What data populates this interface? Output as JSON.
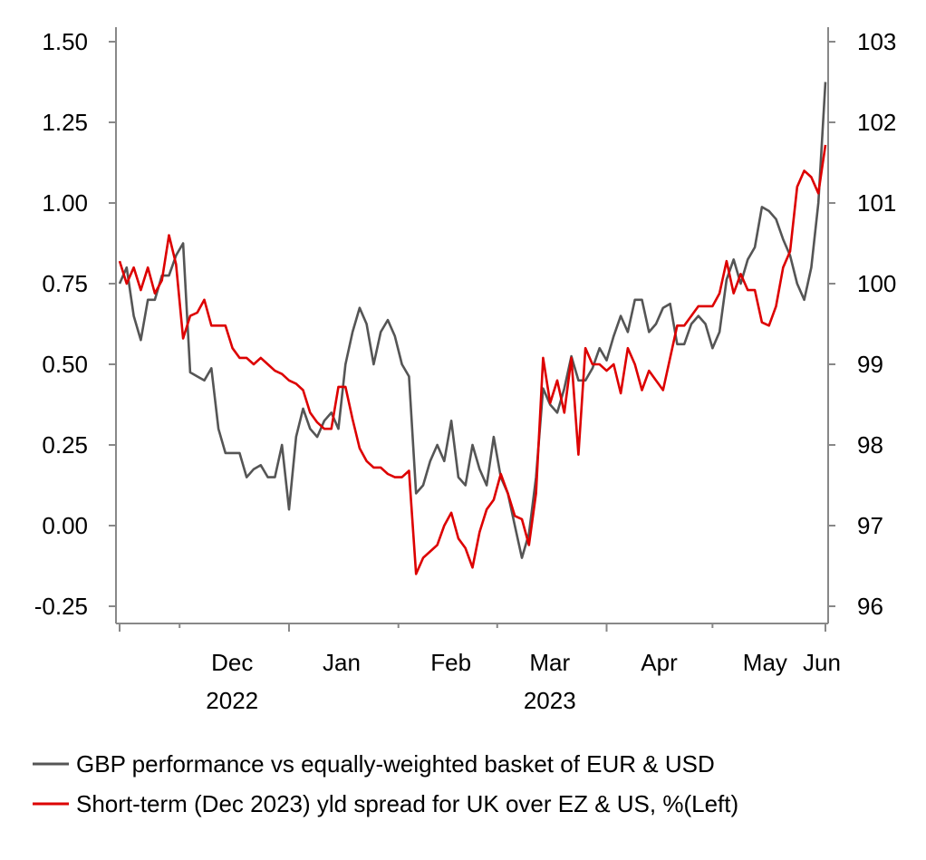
{
  "chart_data": {
    "type": "line",
    "title": "",
    "grid": false,
    "legend_position": "bottom",
    "y_left": {
      "ticks": [
        "1.50",
        "1.25",
        "1.00",
        "0.75",
        "0.50",
        "0.25",
        "0.00",
        "-0.25"
      ],
      "range": [
        -0.3,
        1.5
      ]
    },
    "y_right": {
      "ticks": [
        "103",
        "102",
        "101",
        "100",
        "99",
        "98",
        "97",
        "96"
      ],
      "range": [
        95.8,
        103
      ]
    },
    "x_range": [
      "2022-11-14",
      "2023-06-02"
    ],
    "x_months": [
      {
        "label": "Dec",
        "date": "2022-12-01"
      },
      {
        "label": "Jan",
        "date": "2023-01-01"
      },
      {
        "label": "Feb",
        "date": "2023-02-01"
      },
      {
        "label": "Mar",
        "date": "2023-03-01"
      },
      {
        "label": "Apr",
        "date": "2023-04-01"
      },
      {
        "label": "May",
        "date": "2023-05-01"
      },
      {
        "label": "Jun",
        "date": "2023-06-01"
      }
    ],
    "x_years": [
      {
        "label": "2022",
        "date": "2022-12-01"
      },
      {
        "label": "2023",
        "date": "2023-03-01"
      }
    ],
    "series": [
      {
        "name": "GBP performance vs equally-weighted basket of EUR & USD",
        "color": "#555555",
        "axis": "right",
        "points": [
          [
            "2022-11-14",
            100.0
          ],
          [
            "2022-11-16",
            100.2
          ],
          [
            "2022-11-18",
            99.6
          ],
          [
            "2022-11-20",
            99.3
          ],
          [
            "2022-11-22",
            99.8
          ],
          [
            "2022-11-24",
            99.8
          ],
          [
            "2022-11-26",
            100.1
          ],
          [
            "2022-11-28",
            100.1
          ],
          [
            "2022-11-30",
            100.35
          ],
          [
            "2022-12-02",
            100.5
          ],
          [
            "2022-12-04",
            98.9
          ],
          [
            "2022-12-06",
            98.85
          ],
          [
            "2022-12-08",
            98.8
          ],
          [
            "2022-12-10",
            98.95
          ],
          [
            "2022-12-12",
            98.2
          ],
          [
            "2022-12-14",
            97.9
          ],
          [
            "2022-12-16",
            97.9
          ],
          [
            "2022-12-18",
            97.9
          ],
          [
            "2022-12-20",
            97.6
          ],
          [
            "2022-12-22",
            97.7
          ],
          [
            "2022-12-24",
            97.75
          ],
          [
            "2022-12-26",
            97.6
          ],
          [
            "2022-12-28",
            97.6
          ],
          [
            "2022-12-30",
            98.0
          ],
          [
            "2023-01-01",
            97.2
          ],
          [
            "2023-01-03",
            98.1
          ],
          [
            "2023-01-05",
            98.45
          ],
          [
            "2023-01-07",
            98.2
          ],
          [
            "2023-01-09",
            98.1
          ],
          [
            "2023-01-11",
            98.3
          ],
          [
            "2023-01-13",
            98.4
          ],
          [
            "2023-01-15",
            98.2
          ],
          [
            "2023-01-17",
            99.0
          ],
          [
            "2023-01-19",
            99.4
          ],
          [
            "2023-01-21",
            99.7
          ],
          [
            "2023-01-23",
            99.5
          ],
          [
            "2023-01-25",
            99.0
          ],
          [
            "2023-01-27",
            99.4
          ],
          [
            "2023-01-29",
            99.55
          ],
          [
            "2023-01-31",
            99.35
          ],
          [
            "2023-02-02",
            99.0
          ],
          [
            "2023-02-04",
            98.85
          ],
          [
            "2023-02-06",
            97.4
          ],
          [
            "2023-02-08",
            97.5
          ],
          [
            "2023-02-10",
            97.8
          ],
          [
            "2023-02-12",
            98.0
          ],
          [
            "2023-02-14",
            97.8
          ],
          [
            "2023-02-16",
            98.3
          ],
          [
            "2023-02-18",
            97.6
          ],
          [
            "2023-02-20",
            97.5
          ],
          [
            "2023-02-22",
            98.0
          ],
          [
            "2023-02-24",
            97.7
          ],
          [
            "2023-02-26",
            97.5
          ],
          [
            "2023-02-28",
            98.1
          ],
          [
            "2023-03-02",
            97.6
          ],
          [
            "2023-03-04",
            97.4
          ],
          [
            "2023-03-06",
            97.0
          ],
          [
            "2023-03-08",
            96.6
          ],
          [
            "2023-03-10",
            96.9
          ],
          [
            "2023-03-12",
            97.6
          ],
          [
            "2023-03-14",
            98.7
          ],
          [
            "2023-03-16",
            98.5
          ],
          [
            "2023-03-18",
            98.4
          ],
          [
            "2023-03-20",
            98.7
          ],
          [
            "2023-03-22",
            99.1
          ],
          [
            "2023-03-24",
            98.8
          ],
          [
            "2023-03-26",
            98.8
          ],
          [
            "2023-03-28",
            98.95
          ],
          [
            "2023-03-30",
            99.2
          ],
          [
            "2023-04-01",
            99.05
          ],
          [
            "2023-04-03",
            99.35
          ],
          [
            "2023-04-05",
            99.6
          ],
          [
            "2023-04-07",
            99.4
          ],
          [
            "2023-04-09",
            99.8
          ],
          [
            "2023-04-11",
            99.8
          ],
          [
            "2023-04-13",
            99.4
          ],
          [
            "2023-04-15",
            99.5
          ],
          [
            "2023-04-17",
            99.7
          ],
          [
            "2023-04-19",
            99.75
          ],
          [
            "2023-04-21",
            99.25
          ],
          [
            "2023-04-23",
            99.25
          ],
          [
            "2023-04-25",
            99.5
          ],
          [
            "2023-04-27",
            99.6
          ],
          [
            "2023-04-29",
            99.5
          ],
          [
            "2023-05-01",
            99.2
          ],
          [
            "2023-05-03",
            99.4
          ],
          [
            "2023-05-05",
            100.05
          ],
          [
            "2023-05-07",
            100.3
          ],
          [
            "2023-05-09",
            100.0
          ],
          [
            "2023-05-11",
            100.3
          ],
          [
            "2023-05-13",
            100.45
          ],
          [
            "2023-05-15",
            100.95
          ],
          [
            "2023-05-17",
            100.9
          ],
          [
            "2023-05-19",
            100.8
          ],
          [
            "2023-05-21",
            100.55
          ],
          [
            "2023-05-23",
            100.35
          ],
          [
            "2023-05-25",
            100.0
          ],
          [
            "2023-05-27",
            99.8
          ],
          [
            "2023-05-29",
            100.2
          ],
          [
            "2023-05-31",
            101.0
          ],
          [
            "2023-06-02",
            102.5
          ]
        ]
      },
      {
        "name": "Short-term (Dec 2023) yld spread for UK over EZ & US, %(Left)",
        "color": "#dd0000",
        "axis": "left",
        "points": [
          [
            "2022-11-14",
            0.82
          ],
          [
            "2022-11-16",
            0.75
          ],
          [
            "2022-11-18",
            0.8
          ],
          [
            "2022-11-20",
            0.73
          ],
          [
            "2022-11-22",
            0.8
          ],
          [
            "2022-11-24",
            0.72
          ],
          [
            "2022-11-26",
            0.76
          ],
          [
            "2022-11-28",
            0.9
          ],
          [
            "2022-11-30",
            0.81
          ],
          [
            "2022-12-02",
            0.58
          ],
          [
            "2022-12-04",
            0.65
          ],
          [
            "2022-12-06",
            0.66
          ],
          [
            "2022-12-08",
            0.7
          ],
          [
            "2022-12-10",
            0.62
          ],
          [
            "2022-12-12",
            0.62
          ],
          [
            "2022-12-14",
            0.62
          ],
          [
            "2022-12-16",
            0.55
          ],
          [
            "2022-12-18",
            0.52
          ],
          [
            "2022-12-20",
            0.52
          ],
          [
            "2022-12-22",
            0.5
          ],
          [
            "2022-12-24",
            0.52
          ],
          [
            "2022-12-26",
            0.5
          ],
          [
            "2022-12-28",
            0.48
          ],
          [
            "2022-12-30",
            0.47
          ],
          [
            "2023-01-01",
            0.45
          ],
          [
            "2023-01-03",
            0.44
          ],
          [
            "2023-01-05",
            0.42
          ],
          [
            "2023-01-07",
            0.35
          ],
          [
            "2023-01-09",
            0.32
          ],
          [
            "2023-01-11",
            0.3
          ],
          [
            "2023-01-13",
            0.3
          ],
          [
            "2023-01-15",
            0.43
          ],
          [
            "2023-01-17",
            0.43
          ],
          [
            "2023-01-19",
            0.33
          ],
          [
            "2023-01-21",
            0.24
          ],
          [
            "2023-01-23",
            0.2
          ],
          [
            "2023-01-25",
            0.18
          ],
          [
            "2023-01-27",
            0.18
          ],
          [
            "2023-01-29",
            0.16
          ],
          [
            "2023-01-31",
            0.15
          ],
          [
            "2023-02-02",
            0.15
          ],
          [
            "2023-02-04",
            0.17
          ],
          [
            "2023-02-06",
            -0.15
          ],
          [
            "2023-02-08",
            -0.1
          ],
          [
            "2023-02-10",
            -0.08
          ],
          [
            "2023-02-12",
            -0.06
          ],
          [
            "2023-02-14",
            0.0
          ],
          [
            "2023-02-16",
            0.04
          ],
          [
            "2023-02-18",
            -0.04
          ],
          [
            "2023-02-20",
            -0.07
          ],
          [
            "2023-02-22",
            -0.13
          ],
          [
            "2023-02-24",
            -0.02
          ],
          [
            "2023-02-26",
            0.05
          ],
          [
            "2023-02-28",
            0.08
          ],
          [
            "2023-03-02",
            0.16
          ],
          [
            "2023-03-04",
            0.1
          ],
          [
            "2023-03-06",
            0.03
          ],
          [
            "2023-03-08",
            0.02
          ],
          [
            "2023-03-10",
            -0.06
          ],
          [
            "2023-03-12",
            0.1
          ],
          [
            "2023-03-14",
            0.52
          ],
          [
            "2023-03-16",
            0.38
          ],
          [
            "2023-03-18",
            0.45
          ],
          [
            "2023-03-20",
            0.35
          ],
          [
            "2023-03-22",
            0.52
          ],
          [
            "2023-03-24",
            0.22
          ],
          [
            "2023-03-26",
            0.55
          ],
          [
            "2023-03-28",
            0.5
          ],
          [
            "2023-03-30",
            0.5
          ],
          [
            "2023-04-01",
            0.48
          ],
          [
            "2023-04-03",
            0.5
          ],
          [
            "2023-04-05",
            0.41
          ],
          [
            "2023-04-07",
            0.55
          ],
          [
            "2023-04-09",
            0.5
          ],
          [
            "2023-04-11",
            0.42
          ],
          [
            "2023-04-13",
            0.48
          ],
          [
            "2023-04-15",
            0.45
          ],
          [
            "2023-04-17",
            0.42
          ],
          [
            "2023-04-19",
            0.52
          ],
          [
            "2023-04-21",
            0.62
          ],
          [
            "2023-04-23",
            0.62
          ],
          [
            "2023-04-25",
            0.65
          ],
          [
            "2023-04-27",
            0.68
          ],
          [
            "2023-04-29",
            0.68
          ],
          [
            "2023-05-01",
            0.68
          ],
          [
            "2023-05-03",
            0.72
          ],
          [
            "2023-05-05",
            0.82
          ],
          [
            "2023-05-07",
            0.72
          ],
          [
            "2023-05-09",
            0.78
          ],
          [
            "2023-05-11",
            0.73
          ],
          [
            "2023-05-13",
            0.73
          ],
          [
            "2023-05-15",
            0.63
          ],
          [
            "2023-05-17",
            0.62
          ],
          [
            "2023-05-19",
            0.68
          ],
          [
            "2023-05-21",
            0.8
          ],
          [
            "2023-05-23",
            0.85
          ],
          [
            "2023-05-25",
            1.05
          ],
          [
            "2023-05-27",
            1.1
          ],
          [
            "2023-05-29",
            1.08
          ],
          [
            "2023-05-31",
            1.03
          ],
          [
            "2023-06-02",
            1.18
          ]
        ]
      }
    ]
  }
}
